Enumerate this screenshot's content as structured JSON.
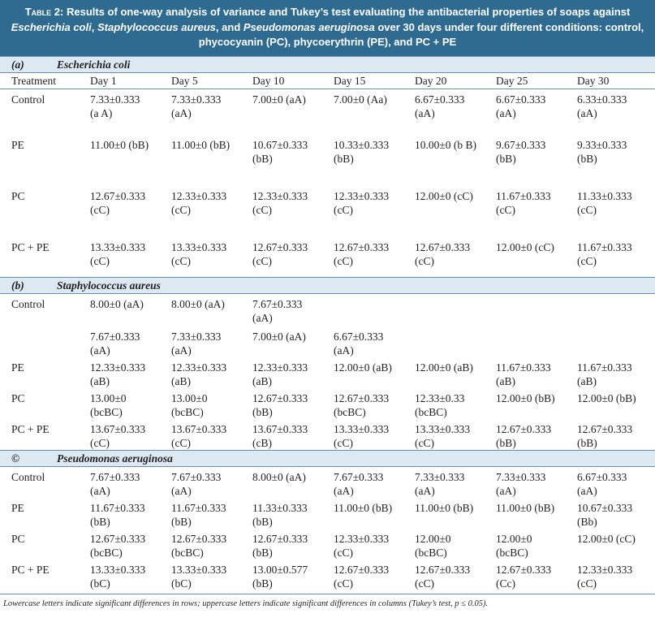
{
  "caption": {
    "label": "Table 2:",
    "part1": "Results of one-way analysis of variance and Tukey’s test evaluating the antibacterial properties of soaps against ",
    "org1": "Escherichia coli",
    "sep1": ", ",
    "org2": "Staphylococcus aureus",
    "sep2": ", and ",
    "org3": "Pseudomonas aeruginosa",
    "part2": " over 30 days under four different conditions: control, phycocyanin (PC), phycoerythrin (PE), and PC + PE"
  },
  "header": {
    "treatment": "Treatment",
    "days": [
      "Day 1",
      "Day 5",
      "Day 10",
      "Day 15",
      "Day 20",
      "Day 25",
      "Day 30"
    ]
  },
  "sections": [
    {
      "label": "(a)",
      "organism": "Escherichia coli",
      "rows": [
        {
          "treatment": "Control",
          "cells": [
            [
              "7.33±0.333",
              "(a A)"
            ],
            [
              "7.33±0.333",
              "(aA)"
            ],
            [
              "7.00±0 (aA)",
              ""
            ],
            [
              "7.00±0 (Aa)",
              ""
            ],
            [
              "6.67±0.333",
              "(aA)"
            ],
            [
              "6.67±0.333",
              "(aA)"
            ],
            [
              "6.33±0.333",
              "(aA)"
            ]
          ]
        },
        {
          "treatment": "PE",
          "cells": [
            [
              "11.00±0 (bB)",
              ""
            ],
            [
              "11.00±0 (bB)",
              ""
            ],
            [
              "10.67±0.333",
              "(bB)"
            ],
            [
              "10.33±0.333",
              "(bB)"
            ],
            [
              "10.00±0 (b B)",
              ""
            ],
            [
              "9.67±0.333",
              "(bB)"
            ],
            [
              "9.33±0.333",
              "(bB)"
            ]
          ]
        },
        {
          "treatment": "PC",
          "cells": [
            [
              "12.67±0.333",
              "(cC)"
            ],
            [
              "12.33±0.333",
              "(cC)"
            ],
            [
              "12.33±0.333",
              "(cC)"
            ],
            [
              "12.33±0.333",
              "(cC)"
            ],
            [
              "12.00±0 (cC)",
              ""
            ],
            [
              "11.67±0.333",
              "(cC)"
            ],
            [
              "11.33±0.333",
              "(cC)"
            ]
          ]
        },
        {
          "treatment": "PC + PE",
          "cells": [
            [
              "13.33±0.333",
              "(cC)"
            ],
            [
              "13.33±0.333",
              "(cC)"
            ],
            [
              "12.67±0.333",
              "(cC)"
            ],
            [
              "12.67±0.333",
              "(cC)"
            ],
            [
              "12.67±0.333",
              "(cC)"
            ],
            [
              "12.00±0 (cC)",
              ""
            ],
            [
              "11.67±0.333",
              "(cC)"
            ]
          ]
        }
      ]
    },
    {
      "label": "(b)",
      "organism": "Staphylococcus aureus",
      "rows": [
        {
          "treatment": "Control",
          "cells": [
            [
              "8.00±0 (aA)",
              ""
            ],
            [
              "8.00±0 (aA)",
              ""
            ],
            [
              "7.67±0.333",
              "(aA)"
            ],
            [
              "",
              ""
            ],
            [
              "",
              ""
            ],
            [
              "",
              ""
            ],
            [
              "",
              ""
            ]
          ]
        },
        {
          "treatment": "",
          "cells": [
            [
              "7.67±0.333",
              "(aA)"
            ],
            [
              "7.33±0.333",
              "(aA)"
            ],
            [
              "7.00±0 (aA)",
              ""
            ],
            [
              "6.67±0.333",
              "(aA)"
            ],
            [
              "",
              ""
            ],
            [
              "",
              ""
            ],
            [
              "",
              ""
            ]
          ]
        },
        {
          "treatment": "PE",
          "cells": [
            [
              "12.33±0.333",
              "(aB)"
            ],
            [
              "12.33±0.333",
              "(aB)"
            ],
            [
              "12.33±0.333",
              "(aB)"
            ],
            [
              "12.00±0 (aB)",
              ""
            ],
            [
              "12.00±0 (aB)",
              ""
            ],
            [
              "11.67±0.333",
              "(aB)"
            ],
            [
              "11.67±0.333",
              "(aB)"
            ]
          ]
        },
        {
          "treatment": "PC",
          "cells": [
            [
              "13.00±0",
              "(bcBC)"
            ],
            [
              "13.00±0",
              "(bcBC)"
            ],
            [
              "12.67±0.333",
              "(bB)"
            ],
            [
              "12.67±0.333",
              "(bcBC)"
            ],
            [
              "12.33±0.33",
              "(bcBC)"
            ],
            [
              "12.00±0 (bB)",
              ""
            ],
            [
              "12.00±0 (bB)",
              ""
            ]
          ]
        },
        {
          "treatment": "PC + PE",
          "cells": [
            [
              "13.67±0.333",
              "(cC)"
            ],
            [
              "13.67±0.333",
              "(cC)"
            ],
            [
              "13.67±0.333",
              "(cB)"
            ],
            [
              "13.33±0.333",
              "(cC)"
            ],
            [
              "13.33±0.333",
              "(cC)"
            ],
            [
              "12.67±0.333",
              "(bB)"
            ],
            [
              "12.67±0.333",
              "(bB)"
            ]
          ]
        }
      ]
    },
    {
      "label": "©",
      "organism": "Pseudomonas aeruginosa",
      "rows": [
        {
          "treatment": "Control",
          "cells": [
            [
              "7.67±0.333",
              "(aA)"
            ],
            [
              "7.67±0.333",
              "(aA)"
            ],
            [
              "8.00±0 (aA)",
              ""
            ],
            [
              "7.67±0.333",
              "(aA)"
            ],
            [
              "7.33±0.333",
              "(aA)"
            ],
            [
              "7.33±0.333",
              "(aA)"
            ],
            [
              "6.67±0.333",
              "(aA)"
            ]
          ]
        },
        {
          "treatment": "PE",
          "cells": [
            [
              "11.67±0.333",
              "(bB)"
            ],
            [
              "11.67±0.333",
              "(bB)"
            ],
            [
              "11.33±0.333",
              "(bB)"
            ],
            [
              "11.00±0 (bB)",
              ""
            ],
            [
              "11.00±0 (bB)",
              ""
            ],
            [
              "11.00±0 (bB)",
              ""
            ],
            [
              "10.67±0.333",
              "(Bb)"
            ]
          ]
        },
        {
          "treatment": "PC",
          "cells": [
            [
              "12.67±0.333",
              "(bcBC)"
            ],
            [
              "12.67±0.333",
              "(bcBC)"
            ],
            [
              "12.67±0.333",
              "(bB)"
            ],
            [
              "12.33±0.333",
              "(cC)"
            ],
            [
              "12.00±0",
              "(bcBC)"
            ],
            [
              "12.00±0",
              "(bcBC)"
            ],
            [
              "12.00±0 (cC)",
              ""
            ]
          ]
        },
        {
          "treatment": "PC + PE",
          "cells": [
            [
              "13.33±0.333",
              "(bC)"
            ],
            [
              "13.33±0.333",
              "(bC)"
            ],
            [
              "13.00±0.577",
              "(bB)"
            ],
            [
              "12.67±0.333",
              "(cC)"
            ],
            [
              "12.67±0.333",
              "(cC)"
            ],
            [
              "12.67±0.333",
              "(Cc)"
            ],
            [
              "12.33±0.333",
              "(cC)"
            ]
          ]
        }
      ]
    }
  ],
  "footnote": "Lowercase letters indicate significant differences in rows; uppercase letters indicate significant differences in columns (Tukey’s test, p ≤ 0.05)."
}
